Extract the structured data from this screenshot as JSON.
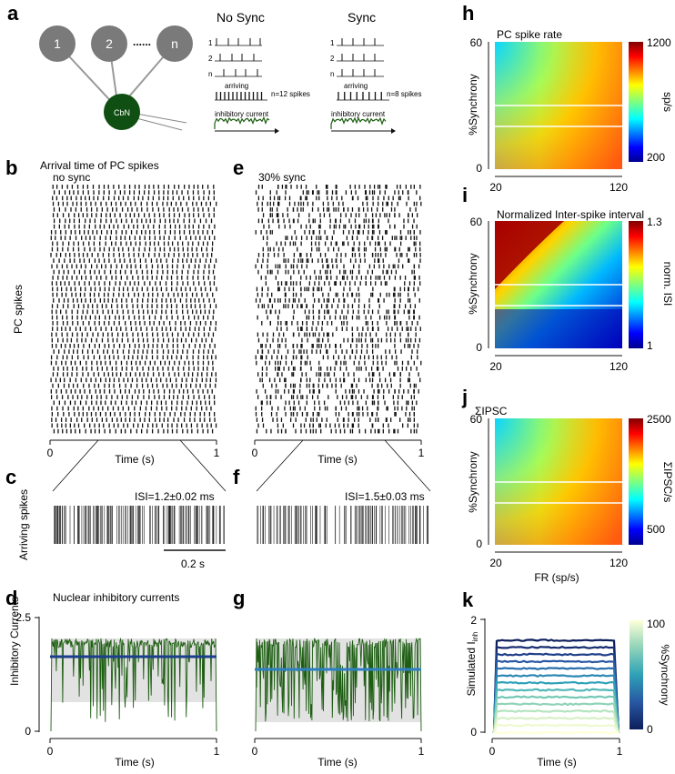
{
  "panel_letters": {
    "a": "a",
    "b": "b",
    "c": "c",
    "d": "d",
    "e": "e",
    "f": "f",
    "g": "g",
    "h": "h",
    "i": "i",
    "j": "j",
    "k": "k"
  },
  "panel_a": {
    "nodes": [
      "1",
      "2",
      "n"
    ],
    "dots": "......",
    "cbn": "CbN",
    "no_sync": {
      "title": "No Sync",
      "rows": [
        "1",
        "2",
        "n"
      ],
      "arriving": "arriving",
      "count": "n=12 spikes",
      "inhib": "inhibitory current"
    },
    "sync": {
      "title": "Sync",
      "rows": [
        "1",
        "2",
        "n"
      ],
      "arriving": "arriving",
      "count": "n=8 spikes",
      "inhib": "inhibitory current"
    }
  },
  "panel_b": {
    "title": "Arrival time of PC spikes",
    "subtitle": "no sync",
    "ylabel": "PC spikes",
    "xticks": [
      "0",
      "1"
    ],
    "xlabel": "Time (s)"
  },
  "panel_e": {
    "subtitle": "30% sync",
    "xticks": [
      "0",
      "1"
    ],
    "xlabel": "Time (s)"
  },
  "panel_c": {
    "ylabel": "Arriving spikes",
    "isi": "ISI=1.2±0.02 ms",
    "scale": "0.2 s"
  },
  "panel_f": {
    "isi": "ISI=1.5±0.03 ms"
  },
  "panel_d": {
    "title": "Nuclear inhibitory currents",
    "ylabel": "Inhibitory Currents",
    "yticks": [
      "0",
      "2.5"
    ],
    "xticks": [
      "0",
      "1"
    ],
    "xlabel": "Time (s)"
  },
  "panel_g": {
    "xticks": [
      "0",
      "1"
    ],
    "xlabel": "Time (s)"
  },
  "panel_h": {
    "title": "PC spike rate",
    "ylabel": "%Synchrony",
    "yticks": [
      "0",
      "60"
    ],
    "xticks": [
      "20",
      "120"
    ],
    "cb_ticks": [
      "1200",
      "200"
    ],
    "cb_label": "sp/s"
  },
  "panel_i": {
    "title": "Normalized Inter-spike interval",
    "ylabel": "%Synchrony",
    "yticks": [
      "0",
      "60"
    ],
    "xticks": [
      "20",
      "120"
    ],
    "cb_ticks": [
      "1.3",
      "1"
    ],
    "cb_label": "norm. ISI"
  },
  "panel_j": {
    "title": "ΣIPSC",
    "ylabel": "%Synchrony",
    "yticks": [
      "0",
      "60"
    ],
    "xticks": [
      "20",
      "120"
    ],
    "cb_ticks": [
      "2500",
      "500"
    ],
    "cb_label": "ΣIPSC/s",
    "xlabel": "FR (sp/s)"
  },
  "panel_k": {
    "ylabel_main": "Simulated I",
    "ylabel_sub": "inh",
    "yticks": [
      "0",
      "2"
    ],
    "xticks": [
      "0",
      "1"
    ],
    "xlabel": "Time (s)",
    "cb_ticks": [
      "100",
      "0"
    ],
    "cb_label": "%Synchrony"
  },
  "colors": {
    "node": "#7a7a7a",
    "cbn": "#0f4f12",
    "trace": "#1d5e12",
    "mean_d": "#1b3f8a",
    "mean_g": "#2e7fc4",
    "band": "#e2e2e2"
  }
}
